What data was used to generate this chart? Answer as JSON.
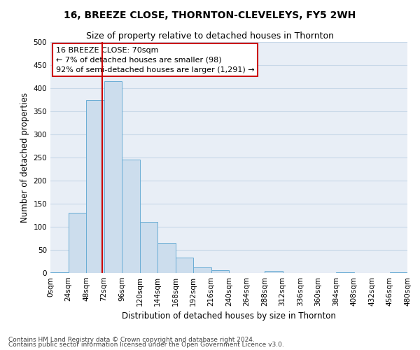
{
  "title": "16, BREEZE CLOSE, THORNTON-CLEVELEYS, FY5 2WH",
  "subtitle": "Size of property relative to detached houses in Thornton",
  "xlabel": "Distribution of detached houses by size in Thornton",
  "ylabel": "Number of detached properties",
  "bin_edges": [
    0,
    24,
    48,
    72,
    96,
    120,
    144,
    168,
    192,
    216,
    240,
    264,
    288,
    312,
    336,
    360,
    384,
    408,
    432,
    456,
    480
  ],
  "bar_values": [
    2,
    130,
    375,
    415,
    245,
    110,
    65,
    33,
    12,
    6,
    0,
    0,
    5,
    0,
    0,
    0,
    2,
    0,
    0,
    1
  ],
  "bar_facecolor": "#ccdded",
  "bar_edgecolor": "#6aadd5",
  "grid_color": "#c8d8e8",
  "bg_color": "#e8eef6",
  "vline_x": 70,
  "vline_color": "#cc0000",
  "annotation_text": "16 BREEZE CLOSE: 70sqm\n← 7% of detached houses are smaller (98)\n92% of semi-detached houses are larger (1,291) →",
  "annotation_box_edgecolor": "#cc0000",
  "ylim": [
    0,
    500
  ],
  "yticks": [
    0,
    50,
    100,
    150,
    200,
    250,
    300,
    350,
    400,
    450,
    500
  ],
  "footnote1": "Contains HM Land Registry data © Crown copyright and database right 2024.",
  "footnote2": "Contains public sector information licensed under the Open Government Licence v3.0.",
  "title_fontsize": 10,
  "subtitle_fontsize": 9,
  "axis_label_fontsize": 8.5,
  "tick_fontsize": 7.5,
  "annotation_fontsize": 8,
  "footnote_fontsize": 6.5
}
